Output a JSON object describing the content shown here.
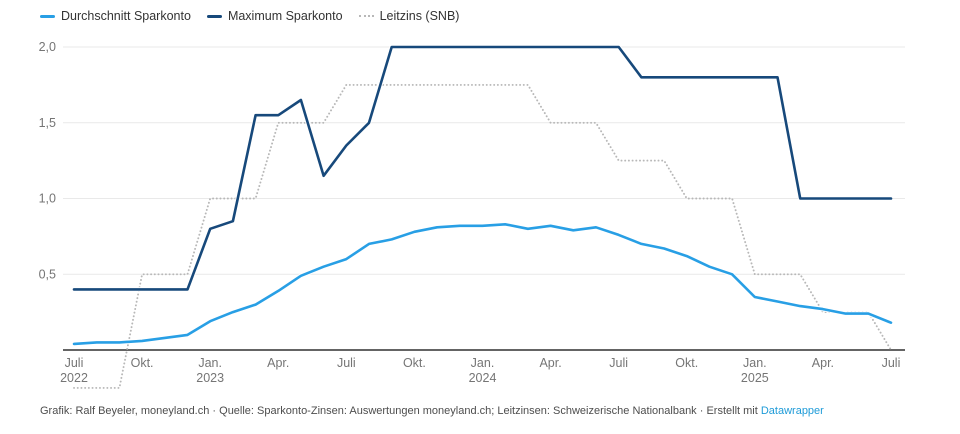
{
  "legend": {
    "items": [
      {
        "label": "Durchschnitt Sparkonto",
        "color": "#289fe5",
        "style": "solid"
      },
      {
        "label": "Maximum Sparkonto",
        "color": "#17497b",
        "style": "solid"
      },
      {
        "label": "Leitzins (SNB)",
        "color": "#b8b8b8",
        "style": "dotted"
      }
    ]
  },
  "chart_data": {
    "type": "line",
    "x": [
      "2022-07",
      "2022-08",
      "2022-09",
      "2022-10",
      "2022-11",
      "2022-12",
      "2023-01",
      "2023-02",
      "2023-03",
      "2023-04",
      "2023-05",
      "2023-06",
      "2023-07",
      "2023-08",
      "2023-09",
      "2023-10",
      "2023-11",
      "2023-12",
      "2024-01",
      "2024-02",
      "2024-03",
      "2024-04",
      "2024-05",
      "2024-06",
      "2024-07",
      "2024-08",
      "2024-09",
      "2024-10",
      "2024-11",
      "2024-12",
      "2025-01",
      "2025-02",
      "2025-03",
      "2025-04",
      "2025-05",
      "2025-06",
      "2025-07"
    ],
    "x_tick_labels": [
      {
        "index": 0,
        "month": "Juli",
        "year": "2022"
      },
      {
        "index": 3,
        "month": "Okt."
      },
      {
        "index": 6,
        "month": "Jan.",
        "year": "2023"
      },
      {
        "index": 9,
        "month": "Apr."
      },
      {
        "index": 12,
        "month": "Juli"
      },
      {
        "index": 15,
        "month": "Okt."
      },
      {
        "index": 18,
        "month": "Jan.",
        "year": "2024"
      },
      {
        "index": 21,
        "month": "Apr."
      },
      {
        "index": 24,
        "month": "Juli"
      },
      {
        "index": 27,
        "month": "Okt."
      },
      {
        "index": 30,
        "month": "Jan.",
        "year": "2025"
      },
      {
        "index": 33,
        "month": "Apr."
      },
      {
        "index": 36,
        "month": "Juli"
      }
    ],
    "series": [
      {
        "name": "Durchschnitt Sparkonto",
        "color": "#289fe5",
        "style": "solid",
        "values": [
          0.04,
          0.05,
          0.05,
          0.06,
          0.08,
          0.1,
          0.19,
          0.25,
          0.3,
          0.39,
          0.49,
          0.55,
          0.6,
          0.7,
          0.73,
          0.78,
          0.81,
          0.82,
          0.82,
          0.83,
          0.8,
          0.82,
          0.79,
          0.81,
          0.76,
          0.7,
          0.67,
          0.62,
          0.55,
          0.5,
          0.35,
          0.32,
          0.29,
          0.27,
          0.24,
          0.24,
          0.18
        ]
      },
      {
        "name": "Maximum Sparkonto",
        "color": "#17497b",
        "style": "solid",
        "values": [
          0.4,
          0.4,
          0.4,
          0.4,
          0.4,
          0.4,
          0.8,
          0.85,
          1.55,
          1.55,
          1.65,
          1.15,
          1.35,
          1.5,
          2.0,
          2.0,
          2.0,
          2.0,
          2.0,
          2.0,
          2.0,
          2.0,
          2.0,
          2.0,
          2.0,
          1.8,
          1.8,
          1.8,
          1.8,
          1.8,
          1.8,
          1.8,
          1.0,
          1.0,
          1.0,
          1.0,
          1.0
        ]
      },
      {
        "name": "Leitzins (SNB)",
        "color": "#b8b8b8",
        "style": "dotted",
        "values": [
          -0.25,
          -0.25,
          -0.25,
          0.5,
          0.5,
          0.5,
          1.0,
          1.0,
          1.0,
          1.5,
          1.5,
          1.5,
          1.75,
          1.75,
          1.75,
          1.75,
          1.75,
          1.75,
          1.75,
          1.75,
          1.75,
          1.5,
          1.5,
          1.5,
          1.25,
          1.25,
          1.25,
          1.0,
          1.0,
          1.0,
          0.5,
          0.5,
          0.5,
          0.25,
          0.25,
          0.25,
          0.0
        ]
      }
    ],
    "yticks": [
      0.5,
      1.0,
      1.5,
      2.0
    ],
    "ytick_labels": [
      "0,5",
      "1,0",
      "1,5",
      "2,0"
    ],
    "ylim": [
      -0.25,
      2.0
    ],
    "grid": true,
    "legend_position": "top"
  },
  "footer": {
    "text": "Grafik: Ralf Beyeler, moneyland.ch · Quelle: Sparkonto-Zinsen: Auswertungen moneyland.ch; Leitzinsen: Schweizerische Nationalbank · Erstellt mit ",
    "link_label": "Datawrapper",
    "link_color": "#1e9bd8"
  }
}
